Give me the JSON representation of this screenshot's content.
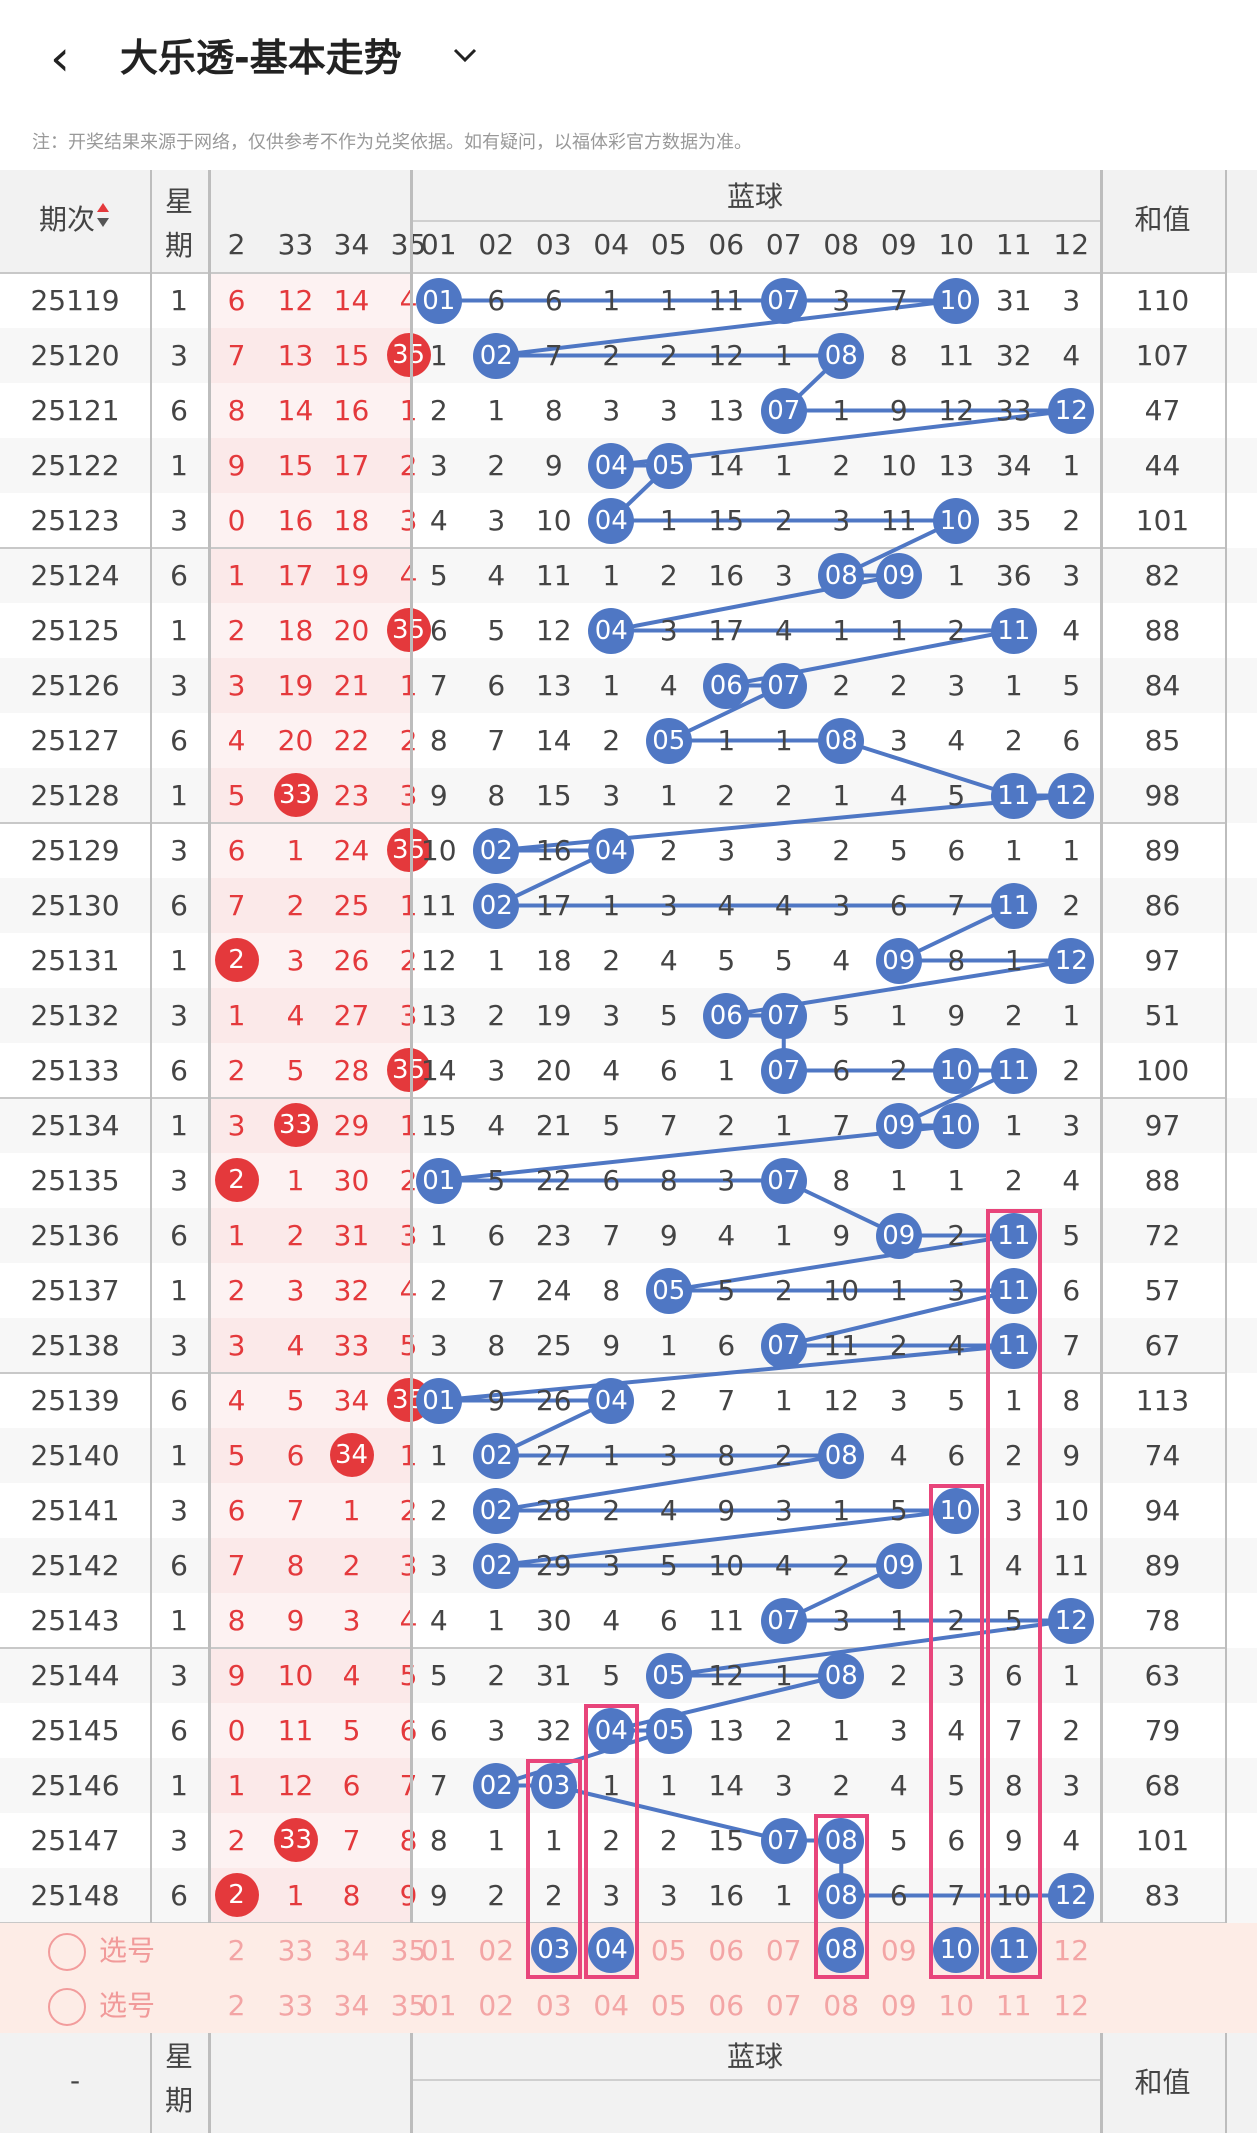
{
  "header": {
    "title": "大乐透-基本走势",
    "back_icon": "chevron-left-icon",
    "dropdown_icon": "chevron-down-icon"
  },
  "note": "注：开奖结果来源于网络，仅供参考不作为兑奖依据。如有疑问，以福体彩官方数据为准。",
  "columns": {
    "period": "期次",
    "weekday": "星期",
    "front_partial": [
      "2",
      "33",
      "34",
      "35"
    ],
    "blue_title": "蓝球",
    "blue": [
      "01",
      "02",
      "03",
      "04",
      "05",
      "06",
      "07",
      "08",
      "09",
      "10",
      "11",
      "12"
    ],
    "sum": "和值"
  },
  "rows": [
    {
      "period": "25119",
      "wd": "1",
      "f": [
        "6",
        "12",
        "14",
        "4"
      ],
      "red": [],
      "b": [
        "01",
        "6",
        "6",
        "1",
        "1",
        "11",
        "07",
        "3",
        "7",
        "10",
        "31",
        "3"
      ],
      "sum": "110"
    },
    {
      "period": "25120",
      "wd": "3",
      "f": [
        "7",
        "13",
        "15",
        "35"
      ],
      "red": [
        3
      ],
      "b": [
        "1",
        "02",
        "7",
        "2",
        "2",
        "12",
        "1",
        "08",
        "8",
        "11",
        "32",
        "4"
      ],
      "sum": "107"
    },
    {
      "period": "25121",
      "wd": "6",
      "f": [
        "8",
        "14",
        "16",
        "1"
      ],
      "red": [],
      "b": [
        "2",
        "1",
        "8",
        "3",
        "3",
        "13",
        "07",
        "1",
        "9",
        "12",
        "33",
        "12"
      ],
      "sum": "47"
    },
    {
      "period": "25122",
      "wd": "1",
      "f": [
        "9",
        "15",
        "17",
        "2"
      ],
      "red": [],
      "b": [
        "3",
        "2",
        "9",
        "04",
        "05",
        "14",
        "1",
        "2",
        "10",
        "13",
        "34",
        "1"
      ],
      "sum": "44"
    },
    {
      "period": "25123",
      "wd": "3",
      "f": [
        "0",
        "16",
        "18",
        "3"
      ],
      "red": [],
      "b": [
        "4",
        "3",
        "10",
        "04",
        "1",
        "15",
        "2",
        "3",
        "11",
        "10",
        "35",
        "2"
      ],
      "sum": "101"
    },
    {
      "period": "25124",
      "wd": "6",
      "f": [
        "1",
        "17",
        "19",
        "4"
      ],
      "red": [],
      "b": [
        "5",
        "4",
        "11",
        "1",
        "2",
        "16",
        "3",
        "08",
        "09",
        "1",
        "36",
        "3"
      ],
      "sum": "82"
    },
    {
      "period": "25125",
      "wd": "1",
      "f": [
        "2",
        "18",
        "20",
        "35"
      ],
      "red": [
        3
      ],
      "b": [
        "6",
        "5",
        "12",
        "04",
        "3",
        "17",
        "4",
        "1",
        "1",
        "2",
        "11",
        "4"
      ],
      "sum": "88"
    },
    {
      "period": "25126",
      "wd": "3",
      "f": [
        "3",
        "19",
        "21",
        "1"
      ],
      "red": [],
      "b": [
        "7",
        "6",
        "13",
        "1",
        "4",
        "06",
        "07",
        "2",
        "2",
        "3",
        "1",
        "5"
      ],
      "sum": "84"
    },
    {
      "period": "25127",
      "wd": "6",
      "f": [
        "4",
        "20",
        "22",
        "2"
      ],
      "red": [],
      "b": [
        "8",
        "7",
        "14",
        "2",
        "05",
        "1",
        "1",
        "08",
        "3",
        "4",
        "2",
        "6"
      ],
      "sum": "85"
    },
    {
      "period": "25128",
      "wd": "1",
      "f": [
        "5",
        "33",
        "23",
        "3"
      ],
      "red": [
        1
      ],
      "b": [
        "9",
        "8",
        "15",
        "3",
        "1",
        "2",
        "2",
        "1",
        "4",
        "5",
        "11",
        "12"
      ],
      "sum": "98"
    },
    {
      "period": "25129",
      "wd": "3",
      "f": [
        "6",
        "1",
        "24",
        "35"
      ],
      "red": [
        3
      ],
      "b": [
        "10",
        "02",
        "16",
        "04",
        "2",
        "3",
        "3",
        "2",
        "5",
        "6",
        "1",
        "1"
      ],
      "sum": "89"
    },
    {
      "period": "25130",
      "wd": "6",
      "f": [
        "7",
        "2",
        "25",
        "1"
      ],
      "red": [],
      "b": [
        "11",
        "02",
        "17",
        "1",
        "3",
        "4",
        "4",
        "3",
        "6",
        "7",
        "11",
        "2"
      ],
      "sum": "86"
    },
    {
      "period": "25131",
      "wd": "1",
      "f": [
        "2",
        "3",
        "26",
        "2"
      ],
      "red": [
        0
      ],
      "b": [
        "12",
        "1",
        "18",
        "2",
        "4",
        "5",
        "5",
        "4",
        "09",
        "8",
        "1",
        "12"
      ],
      "sum": "97"
    },
    {
      "period": "25132",
      "wd": "3",
      "f": [
        "1",
        "4",
        "27",
        "3"
      ],
      "red": [],
      "b": [
        "13",
        "2",
        "19",
        "3",
        "5",
        "06",
        "07",
        "5",
        "1",
        "9",
        "2",
        "1"
      ],
      "sum": "51"
    },
    {
      "period": "25133",
      "wd": "6",
      "f": [
        "2",
        "5",
        "28",
        "35"
      ],
      "red": [
        3
      ],
      "b": [
        "14",
        "3",
        "20",
        "4",
        "6",
        "1",
        "07",
        "6",
        "2",
        "10",
        "11",
        "2"
      ],
      "sum": "100"
    },
    {
      "period": "25134",
      "wd": "1",
      "f": [
        "3",
        "33",
        "29",
        "1"
      ],
      "red": [
        1
      ],
      "b": [
        "15",
        "4",
        "21",
        "5",
        "7",
        "2",
        "1",
        "7",
        "09",
        "10",
        "1",
        "3"
      ],
      "sum": "97"
    },
    {
      "period": "25135",
      "wd": "3",
      "f": [
        "2",
        "1",
        "30",
        "2"
      ],
      "red": [
        0
      ],
      "b": [
        "01",
        "5",
        "22",
        "6",
        "8",
        "3",
        "07",
        "8",
        "1",
        "1",
        "2",
        "4"
      ],
      "sum": "88"
    },
    {
      "period": "25136",
      "wd": "6",
      "f": [
        "1",
        "2",
        "31",
        "3"
      ],
      "red": [],
      "b": [
        "1",
        "6",
        "23",
        "7",
        "9",
        "4",
        "1",
        "9",
        "09",
        "2",
        "11",
        "5"
      ],
      "sum": "72"
    },
    {
      "period": "25137",
      "wd": "1",
      "f": [
        "2",
        "3",
        "32",
        "4"
      ],
      "red": [],
      "b": [
        "2",
        "7",
        "24",
        "8",
        "05",
        "5",
        "2",
        "10",
        "1",
        "3",
        "11",
        "6"
      ],
      "sum": "57"
    },
    {
      "period": "25138",
      "wd": "3",
      "f": [
        "3",
        "4",
        "33",
        "5"
      ],
      "red": [],
      "b": [
        "3",
        "8",
        "25",
        "9",
        "1",
        "6",
        "07",
        "11",
        "2",
        "4",
        "11",
        "7"
      ],
      "sum": "67"
    },
    {
      "period": "25139",
      "wd": "6",
      "f": [
        "4",
        "5",
        "34",
        "35"
      ],
      "red": [
        3
      ],
      "b": [
        "01",
        "9",
        "26",
        "04",
        "2",
        "7",
        "1",
        "12",
        "3",
        "5",
        "1",
        "8"
      ],
      "sum": "113"
    },
    {
      "period": "25140",
      "wd": "1",
      "f": [
        "5",
        "6",
        "34",
        "1"
      ],
      "red": [
        2
      ],
      "b": [
        "1",
        "02",
        "27",
        "1",
        "3",
        "8",
        "2",
        "08",
        "4",
        "6",
        "2",
        "9"
      ],
      "sum": "74"
    },
    {
      "period": "25141",
      "wd": "3",
      "f": [
        "6",
        "7",
        "1",
        "2"
      ],
      "red": [],
      "b": [
        "2",
        "02",
        "28",
        "2",
        "4",
        "9",
        "3",
        "1",
        "5",
        "10",
        "3",
        "10"
      ],
      "sum": "94"
    },
    {
      "period": "25142",
      "wd": "6",
      "f": [
        "7",
        "8",
        "2",
        "3"
      ],
      "red": [],
      "b": [
        "3",
        "02",
        "29",
        "3",
        "5",
        "10",
        "4",
        "2",
        "09",
        "1",
        "4",
        "11"
      ],
      "sum": "89"
    },
    {
      "period": "25143",
      "wd": "1",
      "f": [
        "8",
        "9",
        "3",
        "4"
      ],
      "red": [],
      "b": [
        "4",
        "1",
        "30",
        "4",
        "6",
        "11",
        "07",
        "3",
        "1",
        "2",
        "5",
        "12"
      ],
      "sum": "78"
    },
    {
      "period": "25144",
      "wd": "3",
      "f": [
        "9",
        "10",
        "4",
        "5"
      ],
      "red": [],
      "b": [
        "5",
        "2",
        "31",
        "5",
        "05",
        "12",
        "1",
        "08",
        "2",
        "3",
        "6",
        "1"
      ],
      "sum": "63"
    },
    {
      "period": "25145",
      "wd": "6",
      "f": [
        "0",
        "11",
        "5",
        "6"
      ],
      "red": [],
      "b": [
        "6",
        "3",
        "32",
        "04",
        "05",
        "13",
        "2",
        "1",
        "3",
        "4",
        "7",
        "2"
      ],
      "sum": "79"
    },
    {
      "period": "25146",
      "wd": "1",
      "f": [
        "1",
        "12",
        "6",
        "7"
      ],
      "red": [],
      "b": [
        "7",
        "02",
        "03",
        "1",
        "1",
        "14",
        "3",
        "2",
        "4",
        "5",
        "8",
        "3"
      ],
      "sum": "68"
    },
    {
      "period": "25147",
      "wd": "3",
      "f": [
        "2",
        "33",
        "7",
        "8"
      ],
      "red": [
        1
      ],
      "b": [
        "8",
        "1",
        "1",
        "2",
        "2",
        "15",
        "07",
        "08",
        "5",
        "6",
        "9",
        "4"
      ],
      "sum": "101"
    },
    {
      "period": "25148",
      "wd": "6",
      "f": [
        "2",
        "1",
        "8",
        "9"
      ],
      "red": [
        0
      ],
      "b": [
        "9",
        "2",
        "2",
        "3",
        "3",
        "16",
        "1",
        "08",
        "6",
        "7",
        "10",
        "12"
      ],
      "sum": "83"
    }
  ],
  "picks": [
    {
      "label": "选号",
      "f": [
        "2",
        "33",
        "34",
        "35"
      ],
      "b": [
        "01",
        "02",
        "03",
        "04",
        "05",
        "06",
        "07",
        "08",
        "09",
        "10",
        "11",
        "12"
      ],
      "sel": [
        "03",
        "04",
        "08",
        "10",
        "11"
      ]
    },
    {
      "label": "选号",
      "f": [
        "2",
        "33",
        "34",
        "35"
      ],
      "b": [
        "01",
        "02",
        "03",
        "04",
        "05",
        "06",
        "07",
        "08",
        "09",
        "10",
        "11",
        "12"
      ],
      "sel": []
    }
  ],
  "footer": {
    "period": "-",
    "weekday": "星期",
    "blue_title": "蓝球",
    "sum": "和值"
  },
  "colors": {
    "blue_ball": "#4f77c4",
    "red_ball": "#e4393c",
    "pink_box": "#e8457b"
  }
}
